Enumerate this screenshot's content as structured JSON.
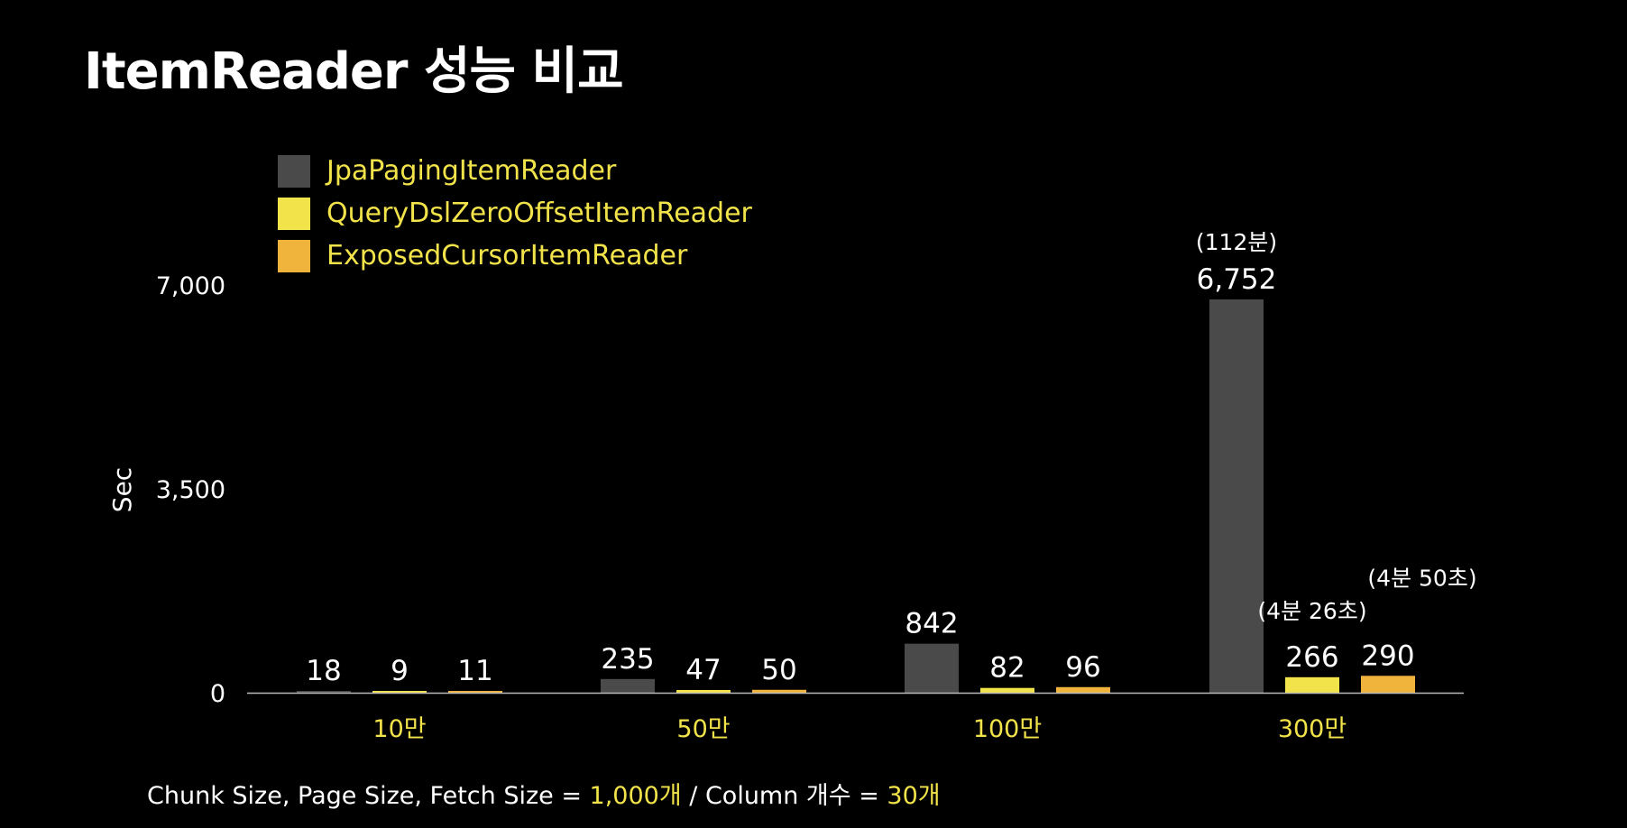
{
  "title": "ItemReader 성능 비교",
  "colors": {
    "background": "#000000",
    "text": "#ffffff",
    "highlight": "#f2e34a",
    "axis": "#bbbbbb"
  },
  "chart_data": {
    "type": "bar",
    "ylabel": "Sec",
    "xlabel": "",
    "ylim": [
      0,
      7000
    ],
    "yticks": [
      "0",
      "3,500",
      "7,000"
    ],
    "ytick_values": [
      0,
      3500,
      7000
    ],
    "grid": false,
    "legend_position": "top-left",
    "categories": [
      "10만",
      "50만",
      "100만",
      "300만"
    ],
    "series": [
      {
        "name": "JpaPagingItemReader",
        "color": "#4a4a4a",
        "values": [
          18,
          235,
          842,
          6752
        ],
        "labels": [
          "18",
          "235",
          "842",
          "6,752"
        ]
      },
      {
        "name": "QueryDslZeroOffsetItemReader",
        "color": "#f2e34a",
        "values": [
          9,
          47,
          82,
          266
        ],
        "labels": [
          "9",
          "47",
          "82",
          "266"
        ]
      },
      {
        "name": "ExposedCursorItemReader",
        "color": "#f0b43c",
        "values": [
          11,
          50,
          96,
          290
        ],
        "labels": [
          "11",
          "50",
          "96",
          "290"
        ]
      }
    ],
    "annotations": [
      {
        "text": "(112분)",
        "category": "300만",
        "series": "JpaPagingItemReader"
      },
      {
        "text": "(4분 26초)",
        "category": "300만",
        "series": "QueryDslZeroOffsetItemReader"
      },
      {
        "text": "(4분 50초)",
        "category": "300만",
        "series": "ExposedCursorItemReader"
      }
    ]
  },
  "footnote": {
    "part1": "Chunk Size, Page Size, Fetch Size = ",
    "value1": "1,000개",
    "part2": " / Column 개수 = ",
    "value2": "30개"
  }
}
